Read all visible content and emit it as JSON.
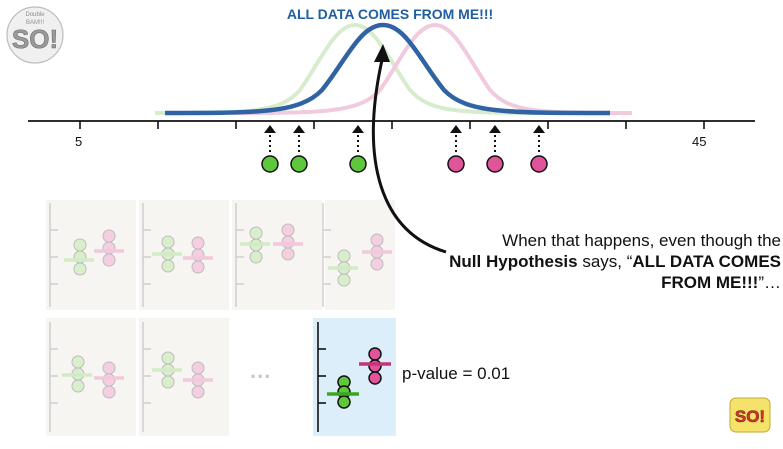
{
  "title": "ALL DATA COMES FROM ME!!!",
  "axis": {
    "tick_left": "5",
    "tick_right": "45"
  },
  "caption": {
    "line1": "When that happens, even though the",
    "bold1": "Null Hypothesis",
    "mid1": " says, “",
    "bold2": "ALL DATA COMES FROM ME!!!",
    "end": "”…"
  },
  "pvalue": "p-value = 0.01",
  "ellipsis": "...",
  "logo": {
    "top_small": "Double",
    "mid_small": "BAM!!!",
    "big": "SO!",
    "corner_big": "SO!"
  },
  "colors": {
    "blue_curve": "#2f63a3",
    "green": "#5ec83a",
    "pink": "#e0559a",
    "faded_green": "#cfe9c2",
    "faded_pink": "#f3c6db",
    "panel_bg": "#f7f5f2",
    "highlight_bg": "#ddeefb"
  }
}
